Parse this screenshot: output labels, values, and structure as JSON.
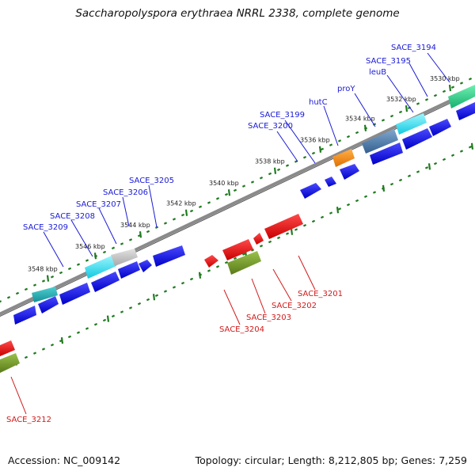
{
  "title": "Saccharopolyspora erythraea NRRL 2338, complete genome",
  "footer": {
    "accession": "Accession: NC_009142",
    "summary": "Topology: circular; Length: 8,212,805 bp; Genes: 7,259"
  },
  "colors": {
    "forward_cds": "#1010e8",
    "reverse_cds": "#e80c0c",
    "ticks": "#1f7a1f",
    "backbone": "#8a8a8a",
    "top_label": "#1a1ad6",
    "bottom_label": "#d11a1a"
  },
  "ticks": [
    {
      "label": "3530 kbp"
    },
    {
      "label": "3532 kbp"
    },
    {
      "label": "3534 kbp"
    },
    {
      "label": "3536 kbp"
    },
    {
      "label": "3538 kbp"
    },
    {
      "label": "3540 kbp"
    },
    {
      "label": "3542 kbp"
    },
    {
      "label": "3544 kbp"
    },
    {
      "label": "3546 kbp"
    },
    {
      "label": "3548 kbp"
    }
  ],
  "top_labels": [
    {
      "text": "SACE_3194"
    },
    {
      "text": "SACE_3195"
    },
    {
      "text": "leuB"
    },
    {
      "text": "proY"
    },
    {
      "text": "hutC"
    },
    {
      "text": "SACE_3199"
    },
    {
      "text": "SACE_3200"
    },
    {
      "text": "SACE_3205"
    },
    {
      "text": "SACE_3206"
    },
    {
      "text": "SACE_3207"
    },
    {
      "text": "SACE_3208"
    },
    {
      "text": "SACE_3209"
    }
  ],
  "bottom_labels": [
    {
      "text": "SACE_3201"
    },
    {
      "text": "SACE_3202"
    },
    {
      "text": "SACE_3203"
    },
    {
      "text": "SACE_3204"
    },
    {
      "text": "SACE_3212"
    }
  ]
}
